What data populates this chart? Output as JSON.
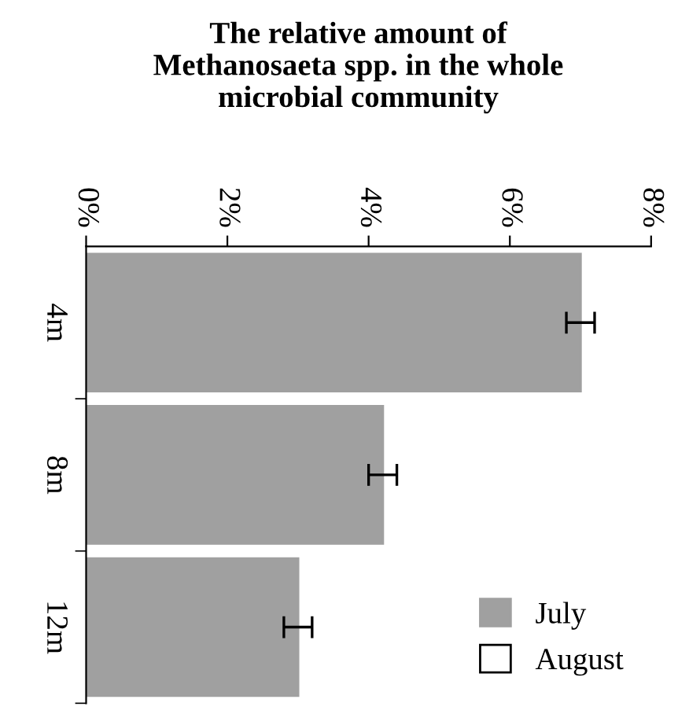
{
  "chart_data": {
    "type": "bar",
    "orientation": "horizontal",
    "title": "The relative amount of\nMethanosaeta spp. in the whole\nmicrobial community",
    "categories": [
      "4m",
      "8m",
      "12m"
    ],
    "series": [
      {
        "name": "July",
        "color": "#a0a0a0",
        "values": [
          7.0,
          4.2,
          3.0
        ],
        "errors": [
          0.2,
          0.2,
          0.2
        ]
      },
      {
        "name": "August",
        "color": "#ffffff",
        "values": [
          null,
          null,
          null
        ]
      }
    ],
    "xlim": [
      0,
      8
    ],
    "xticks": [
      {
        "value": 0,
        "label": "0%"
      },
      {
        "value": 2,
        "label": "2%"
      },
      {
        "value": 4,
        "label": "4%"
      },
      {
        "value": 6,
        "label": "6%"
      },
      {
        "value": 8,
        "label": "8%"
      }
    ],
    "grid": false,
    "legend": "bottom right"
  }
}
